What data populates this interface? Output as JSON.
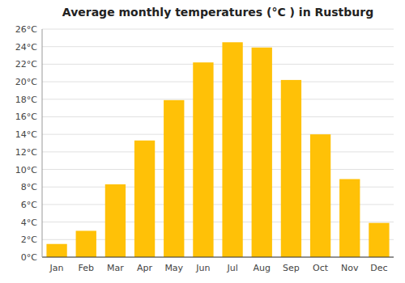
{
  "chart_data": {
    "type": "bar",
    "title": "Average monthly temperatures (°C ) in Rustburg",
    "categories": [
      "Jan",
      "Feb",
      "Mar",
      "Apr",
      "May",
      "Jun",
      "Jul",
      "Aug",
      "Sep",
      "Oct",
      "Nov",
      "Dec"
    ],
    "values": [
      1.5,
      3.0,
      8.3,
      13.3,
      17.9,
      22.2,
      24.5,
      23.9,
      20.2,
      14.0,
      8.9,
      3.9
    ],
    "color": "#FFC107",
    "ylim": [
      0,
      26
    ],
    "yticks": [
      {
        "value": 0,
        "label": "0°C"
      },
      {
        "value": 2,
        "label": "2°C"
      },
      {
        "value": 4,
        "label": "4°C"
      },
      {
        "value": 6,
        "label": "6°C"
      },
      {
        "value": 8,
        "label": "8°C"
      },
      {
        "value": 10,
        "label": "10°C"
      },
      {
        "value": 12,
        "label": "12°C"
      },
      {
        "value": 14,
        "label": "14°C"
      },
      {
        "value": 16,
        "label": "16°C"
      },
      {
        "value": 18,
        "label": "18°C"
      },
      {
        "value": 20,
        "label": "20°C"
      },
      {
        "value": 22,
        "label": "22°C"
      },
      {
        "value": 24,
        "label": "24°C"
      },
      {
        "value": 26,
        "label": "26°C"
      }
    ],
    "grid": true
  }
}
